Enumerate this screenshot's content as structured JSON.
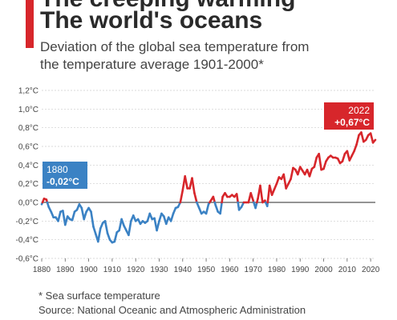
{
  "header": {
    "title_line1": "The creeping warming",
    "title_line2": "The world's oceans",
    "subtitle_line1": "Deviation of the global sea temperature from",
    "subtitle_line2": "the temperature average 1901-2000*"
  },
  "footer": {
    "footnote": "* Sea surface temperature",
    "source": "Source: National Oceanic and Atmospheric Administration"
  },
  "colors": {
    "accent": "#d7262b",
    "warm": "#d7262b",
    "cool": "#3b82c4",
    "grid": "#cccccc",
    "zero_line": "#555555"
  },
  "chart_data": {
    "type": "line",
    "xlabel": "",
    "ylabel": "",
    "xlim": [
      1880,
      2022
    ],
    "ylim": [
      -0.6,
      1.2
    ],
    "grid": true,
    "x_ticks": [
      "1880",
      "1890",
      "1900",
      "1910",
      "1920",
      "1930",
      "1940",
      "1950",
      "1960",
      "1970",
      "1980",
      "1990",
      "2000",
      "2010",
      "2020"
    ],
    "y_ticks": [
      "1,2°C",
      "1,0°C",
      "0,8°C",
      "0,6°C",
      "0,4°C",
      "0,2°C",
      "0,0°C",
      "-0,2°C",
      "-0,4°C",
      "-0,6°C"
    ],
    "color_rule": "values above 0 drawn in warm color, below 0 in cool color",
    "annotations": [
      {
        "year_label": "1880",
        "value_label": "-0,02°C",
        "x": 1880,
        "y": -0.02,
        "color": "#3b82c4"
      },
      {
        "year_label": "2022",
        "value_label": "+0,67°C",
        "x": 2022,
        "y": 0.67,
        "color": "#d7262b"
      }
    ],
    "series": [
      {
        "x": [
          1880,
          1881,
          1882,
          1883,
          1884,
          1885,
          1886,
          1887,
          1888,
          1889,
          1890,
          1891,
          1892,
          1893,
          1894,
          1895,
          1896,
          1897,
          1898,
          1899,
          1900,
          1901,
          1902,
          1903,
          1904,
          1905,
          1906,
          1907,
          1908,
          1909,
          1910,
          1911,
          1912,
          1913,
          1914,
          1915,
          1916,
          1917,
          1918,
          1919,
          1920,
          1921,
          1922,
          1923,
          1924,
          1925,
          1926,
          1927,
          1928,
          1929,
          1930,
          1931,
          1932,
          1933,
          1934,
          1935,
          1936,
          1937,
          1938,
          1939,
          1940,
          1941,
          1942,
          1943,
          1944,
          1945,
          1946,
          1947,
          1948,
          1949,
          1950,
          1951,
          1952,
          1953,
          1954,
          1955,
          1956,
          1957,
          1958,
          1959,
          1960,
          1961,
          1962,
          1963,
          1964,
          1965,
          1966,
          1967,
          1968,
          1969,
          1970,
          1971,
          1972,
          1973,
          1974,
          1975,
          1976,
          1977,
          1978,
          1979,
          1980,
          1981,
          1982,
          1983,
          1984,
          1985,
          1986,
          1987,
          1988,
          1989,
          1990,
          1991,
          1992,
          1993,
          1994,
          1995,
          1996,
          1997,
          1998,
          1999,
          2000,
          2001,
          2002,
          2003,
          2004,
          2005,
          2006,
          2007,
          2008,
          2009,
          2010,
          2011,
          2012,
          2013,
          2014,
          2015,
          2016,
          2017,
          2018,
          2019,
          2020,
          2021,
          2022
        ],
        "values": [
          -0.02,
          0.04,
          0.03,
          -0.05,
          -0.1,
          -0.16,
          -0.16,
          -0.2,
          -0.1,
          -0.09,
          -0.24,
          -0.15,
          -0.18,
          -0.19,
          -0.1,
          -0.08,
          -0.02,
          -0.06,
          -0.18,
          -0.1,
          -0.06,
          -0.1,
          -0.26,
          -0.34,
          -0.42,
          -0.28,
          -0.22,
          -0.2,
          -0.33,
          -0.4,
          -0.43,
          -0.42,
          -0.32,
          -0.3,
          -0.18,
          -0.25,
          -0.3,
          -0.35,
          -0.2,
          -0.14,
          -0.2,
          -0.18,
          -0.23,
          -0.2,
          -0.22,
          -0.2,
          -0.12,
          -0.18,
          -0.17,
          -0.3,
          -0.2,
          -0.12,
          -0.15,
          -0.23,
          -0.16,
          -0.2,
          -0.12,
          -0.06,
          -0.05,
          0.0,
          0.13,
          0.28,
          0.15,
          0.15,
          0.26,
          0.1,
          0.0,
          -0.06,
          -0.12,
          -0.1,
          -0.12,
          -0.02,
          0.02,
          0.06,
          -0.03,
          -0.1,
          -0.12,
          0.06,
          0.1,
          0.06,
          0.06,
          0.08,
          0.06,
          0.09,
          -0.08,
          -0.05,
          0.0,
          0.0,
          0.0,
          0.1,
          0.02,
          -0.06,
          0.04,
          0.18,
          0.0,
          0.02,
          -0.04,
          0.18,
          0.08,
          0.14,
          0.2,
          0.27,
          0.25,
          0.3,
          0.15,
          0.2,
          0.25,
          0.37,
          0.35,
          0.3,
          0.38,
          0.34,
          0.3,
          0.35,
          0.28,
          0.36,
          0.38,
          0.48,
          0.52,
          0.35,
          0.36,
          0.44,
          0.48,
          0.5,
          0.48,
          0.48,
          0.47,
          0.42,
          0.44,
          0.52,
          0.55,
          0.45,
          0.5,
          0.55,
          0.62,
          0.72,
          0.75,
          0.65,
          0.67,
          0.72,
          0.74,
          0.64,
          0.67
        ]
      }
    ]
  }
}
